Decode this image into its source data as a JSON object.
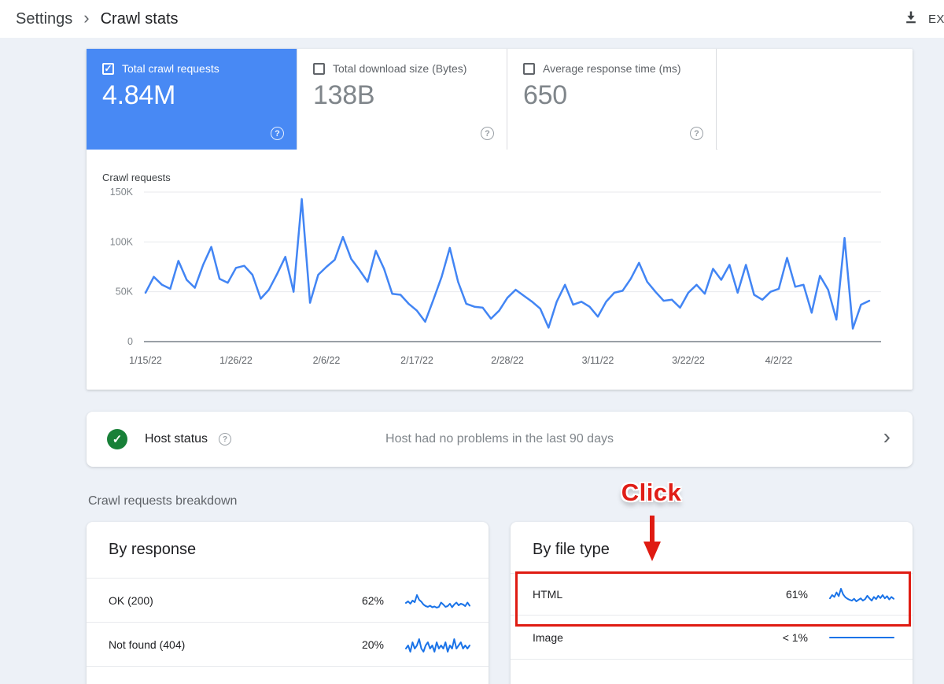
{
  "topbar": {
    "breadcrumb": {
      "parent": "Settings",
      "separator": "›",
      "current": "Crawl stats"
    },
    "export": {
      "label": "EX",
      "icon": "download-icon"
    }
  },
  "icons": {
    "help_glyph": "?",
    "check_glyph": "✓",
    "chevron_right_glyph": "›"
  },
  "metric_cards": [
    {
      "label": "Total crawl requests",
      "value": "4.84M",
      "selected": true,
      "checkbox": "checked"
    },
    {
      "label": "Total download size (Bytes)",
      "value": "138B",
      "selected": false,
      "checkbox": "unchecked"
    },
    {
      "label": "Average response time (ms)",
      "value": "650",
      "selected": false,
      "checkbox": "unchecked"
    }
  ],
  "host_status": {
    "label": "Host status",
    "message": "Host had no problems in the last 90 days",
    "status": "ok"
  },
  "breakdown": {
    "section_title": "Crawl requests breakdown",
    "cards": [
      {
        "title": "By response",
        "rows": [
          {
            "label": "OK (200)",
            "percent": "62%",
            "spark": 1,
            "highlighted": false
          },
          {
            "label": "Not found (404)",
            "percent": "20%",
            "spark": 2,
            "highlighted": false
          }
        ]
      },
      {
        "title": "By file type",
        "rows": [
          {
            "label": "HTML",
            "percent": "61%",
            "spark": 3,
            "highlighted": true
          },
          {
            "label": "Image",
            "percent": "< 1%",
            "spark": 4,
            "highlighted": false
          }
        ]
      }
    ]
  },
  "annotation": {
    "click_label": "Click",
    "arrow_direction": "down",
    "target": "HTML row"
  },
  "colors": {
    "page_bg": "#edf1f7",
    "selected_card_blue": "#4889f4",
    "chart_line_blue": "#4285f4",
    "spark_blue": "#1a73e8",
    "grid_gray": "#e8eaed",
    "axis_gray": "#9aa0a6",
    "annotation_red": "#df1b12",
    "status_green": "#188038"
  },
  "chart_data": [
    {
      "type": "line",
      "title": "Crawl requests",
      "series_label": "Total crawl requests",
      "unit": "thousands",
      "ylim": [
        0,
        150
      ],
      "y_ticks": [
        {
          "label": "0",
          "value": 0
        },
        {
          "label": "50K",
          "value": 50
        },
        {
          "label": "100K",
          "value": 100
        },
        {
          "label": "150K",
          "value": 150
        }
      ],
      "x_tick_labels": [
        "1/15/22",
        "1/26/22",
        "2/6/22",
        "2/17/22",
        "2/28/22",
        "3/11/22",
        "3/22/22",
        "4/2/22"
      ],
      "x_tick_indices": [
        0,
        11,
        22,
        33,
        44,
        55,
        66,
        77
      ],
      "grid": true,
      "legend": "none",
      "values": [
        49,
        65,
        57,
        53,
        81,
        62,
        54,
        77,
        95,
        63,
        59,
        74,
        76,
        67,
        43,
        52,
        68,
        85,
        50,
        143,
        39,
        67,
        75,
        82,
        105,
        83,
        72,
        60,
        91,
        73,
        48,
        47,
        38,
        31,
        20,
        42,
        65,
        94,
        60,
        38,
        35,
        34,
        23,
        31,
        44,
        52,
        46,
        40,
        33,
        14,
        40,
        57,
        37,
        40,
        35,
        25,
        40,
        49,
        51,
        63,
        79,
        60,
        50,
        41,
        42,
        34,
        49,
        57,
        48,
        73,
        62,
        77,
        49,
        77,
        47,
        42,
        50,
        53,
        84,
        55,
        57,
        29,
        66,
        52,
        22,
        104,
        13,
        37,
        41
      ]
    },
    {
      "type": "line",
      "title": "OK (200) sparkline",
      "unit": "percent",
      "values": [
        54,
        58,
        52,
        60,
        56,
        74,
        62,
        57,
        50,
        46,
        44,
        47,
        43,
        45,
        42,
        44,
        55,
        50,
        44,
        46,
        52,
        43,
        50,
        55,
        48,
        52,
        50,
        46,
        55,
        47
      ]
    },
    {
      "type": "line",
      "title": "Not found (404) sparkline",
      "unit": "percent",
      "values": [
        20,
        21,
        19,
        22,
        20,
        21,
        23,
        20,
        19,
        21,
        22,
        20,
        21,
        19,
        22,
        20,
        21,
        20,
        22,
        19,
        21,
        20,
        23,
        20,
        21,
        22,
        20,
        21,
        20,
        21
      ]
    },
    {
      "type": "line",
      "title": "HTML sparkline",
      "unit": "percent",
      "values": [
        46,
        55,
        50,
        62,
        52,
        72,
        57,
        49,
        45,
        42,
        40,
        45,
        38,
        42,
        46,
        40,
        44,
        53,
        46,
        40,
        50,
        44,
        53,
        47,
        55,
        46,
        52,
        43,
        50,
        45
      ]
    },
    {
      "type": "line",
      "title": "Image sparkline",
      "unit": "percent",
      "values": [
        1,
        1,
        1,
        1,
        1,
        1,
        1,
        1,
        1,
        1,
        1,
        1,
        1,
        1,
        1,
        1,
        1,
        1,
        1,
        1
      ]
    }
  ]
}
